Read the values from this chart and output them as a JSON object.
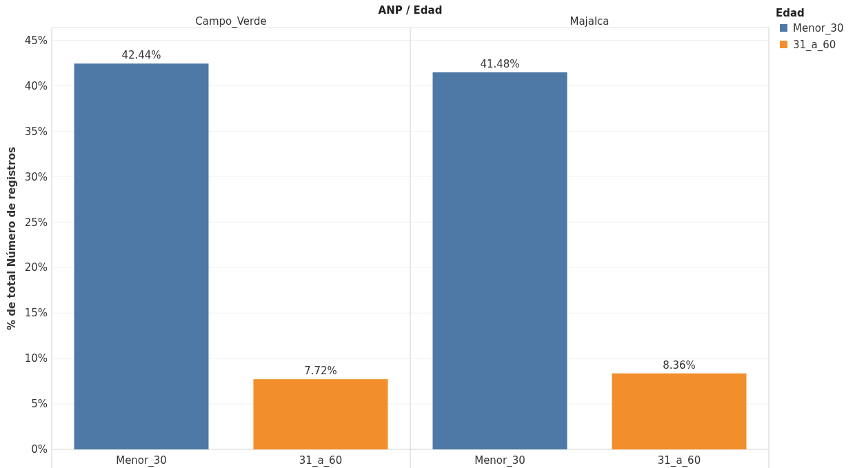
{
  "chart_data": [
    {
      "type": "bar",
      "title": "Campo_Verde",
      "annotations": [
        "ANP / Edad"
      ],
      "ylabel": "% de total Número de registros",
      "categories": [
        "Menor_30",
        "31_a_60"
      ],
      "series": [
        {
          "color": "#4e79a7",
          "values": [
            42.44,
            null
          ],
          "value_labels": [
            "42.44%",
            null
          ]
        },
        {
          "color": "#f28e2b",
          "values": [
            null,
            7.72
          ],
          "value_labels": [
            null,
            "7.72%"
          ]
        }
      ],
      "ylim": [
        0,
        46.4
      ],
      "yticks": [
        {
          "value": 0,
          "label": "0%"
        },
        {
          "value": 5,
          "label": "5%"
        },
        {
          "value": 10,
          "label": "10%"
        },
        {
          "value": 15,
          "label": "15%"
        },
        {
          "value": 20,
          "label": "20%"
        },
        {
          "value": 25,
          "label": "25%"
        },
        {
          "value": 30,
          "label": "30%"
        },
        {
          "value": 35,
          "label": "35%"
        },
        {
          "value": 40,
          "label": "40%"
        },
        {
          "value": 45,
          "label": "45%"
        }
      ],
      "grid": "y"
    },
    {
      "type": "bar",
      "title": "Majalca",
      "legend_title": "Edad",
      "legend": "right",
      "tick_labels": "x",
      "categories": [
        "Menor_30",
        "31_a_60"
      ],
      "series": [
        {
          "name": "Menor_30",
          "color": "#4e79a7",
          "values": [
            41.48,
            null
          ],
          "value_labels": [
            "41.48%",
            null
          ]
        },
        {
          "name": "31_a_60",
          "color": "#f28e2b",
          "values": [
            null,
            8.36
          ],
          "value_labels": [
            null,
            "8.36%"
          ]
        }
      ],
      "ylim": [
        0,
        46.4
      ],
      "yticks": [
        0,
        5,
        10,
        15,
        20,
        25,
        30,
        35,
        40,
        45
      ],
      "grid": "y"
    }
  ]
}
